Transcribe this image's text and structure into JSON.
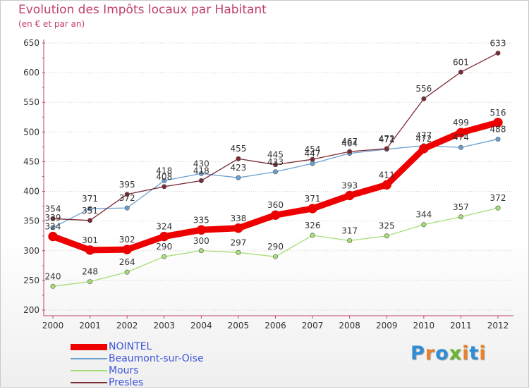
{
  "title": "Evolution des Impôts locaux par Habitant",
  "subtitle": "(en € et par an)",
  "logo": {
    "text": "Proxiti",
    "colors": [
      "#2c8ed6",
      "#e9822a",
      "#2c8ed6",
      "#6cb531",
      "#e9822a",
      "#2c8ed6",
      "#e9822a"
    ]
  },
  "chart_data": {
    "type": "line",
    "title": "Evolution des Impôts locaux par Habitant",
    "subtitle": "(en € et par an)",
    "xlabel": "",
    "ylabel": "",
    "ylim": [
      200,
      650
    ],
    "yticks": [
      200,
      250,
      300,
      350,
      400,
      450,
      500,
      550,
      600,
      650
    ],
    "x": [
      2000,
      2001,
      2002,
      2003,
      2004,
      2005,
      2006,
      2007,
      2008,
      2009,
      2010,
      2011,
      2012
    ],
    "grid": "horizontal",
    "legend_position": "bottom-left",
    "series": [
      {
        "name": "NOINTEL",
        "color": "#ee0000",
        "values": [
          324,
          301,
          302,
          324,
          335,
          338,
          360,
          371,
          393,
          411,
          472,
          499,
          516
        ]
      },
      {
        "name": "Beaumont-sur-Oise",
        "color": "#6a9fd1",
        "values": [
          339,
          371,
          372,
          418,
          430,
          423,
          433,
          447,
          464,
          471,
          477,
          474,
          488
        ]
      },
      {
        "name": "Mours",
        "color": "#a6dd75",
        "values": [
          240,
          248,
          264,
          290,
          300,
          297,
          290,
          326,
          317,
          325,
          344,
          357,
          372
        ]
      },
      {
        "name": "Presles",
        "color": "#7a2a33",
        "values": [
          354,
          351,
          395,
          408,
          418,
          455,
          445,
          454,
          467,
          472,
          556,
          601,
          633
        ]
      }
    ]
  }
}
